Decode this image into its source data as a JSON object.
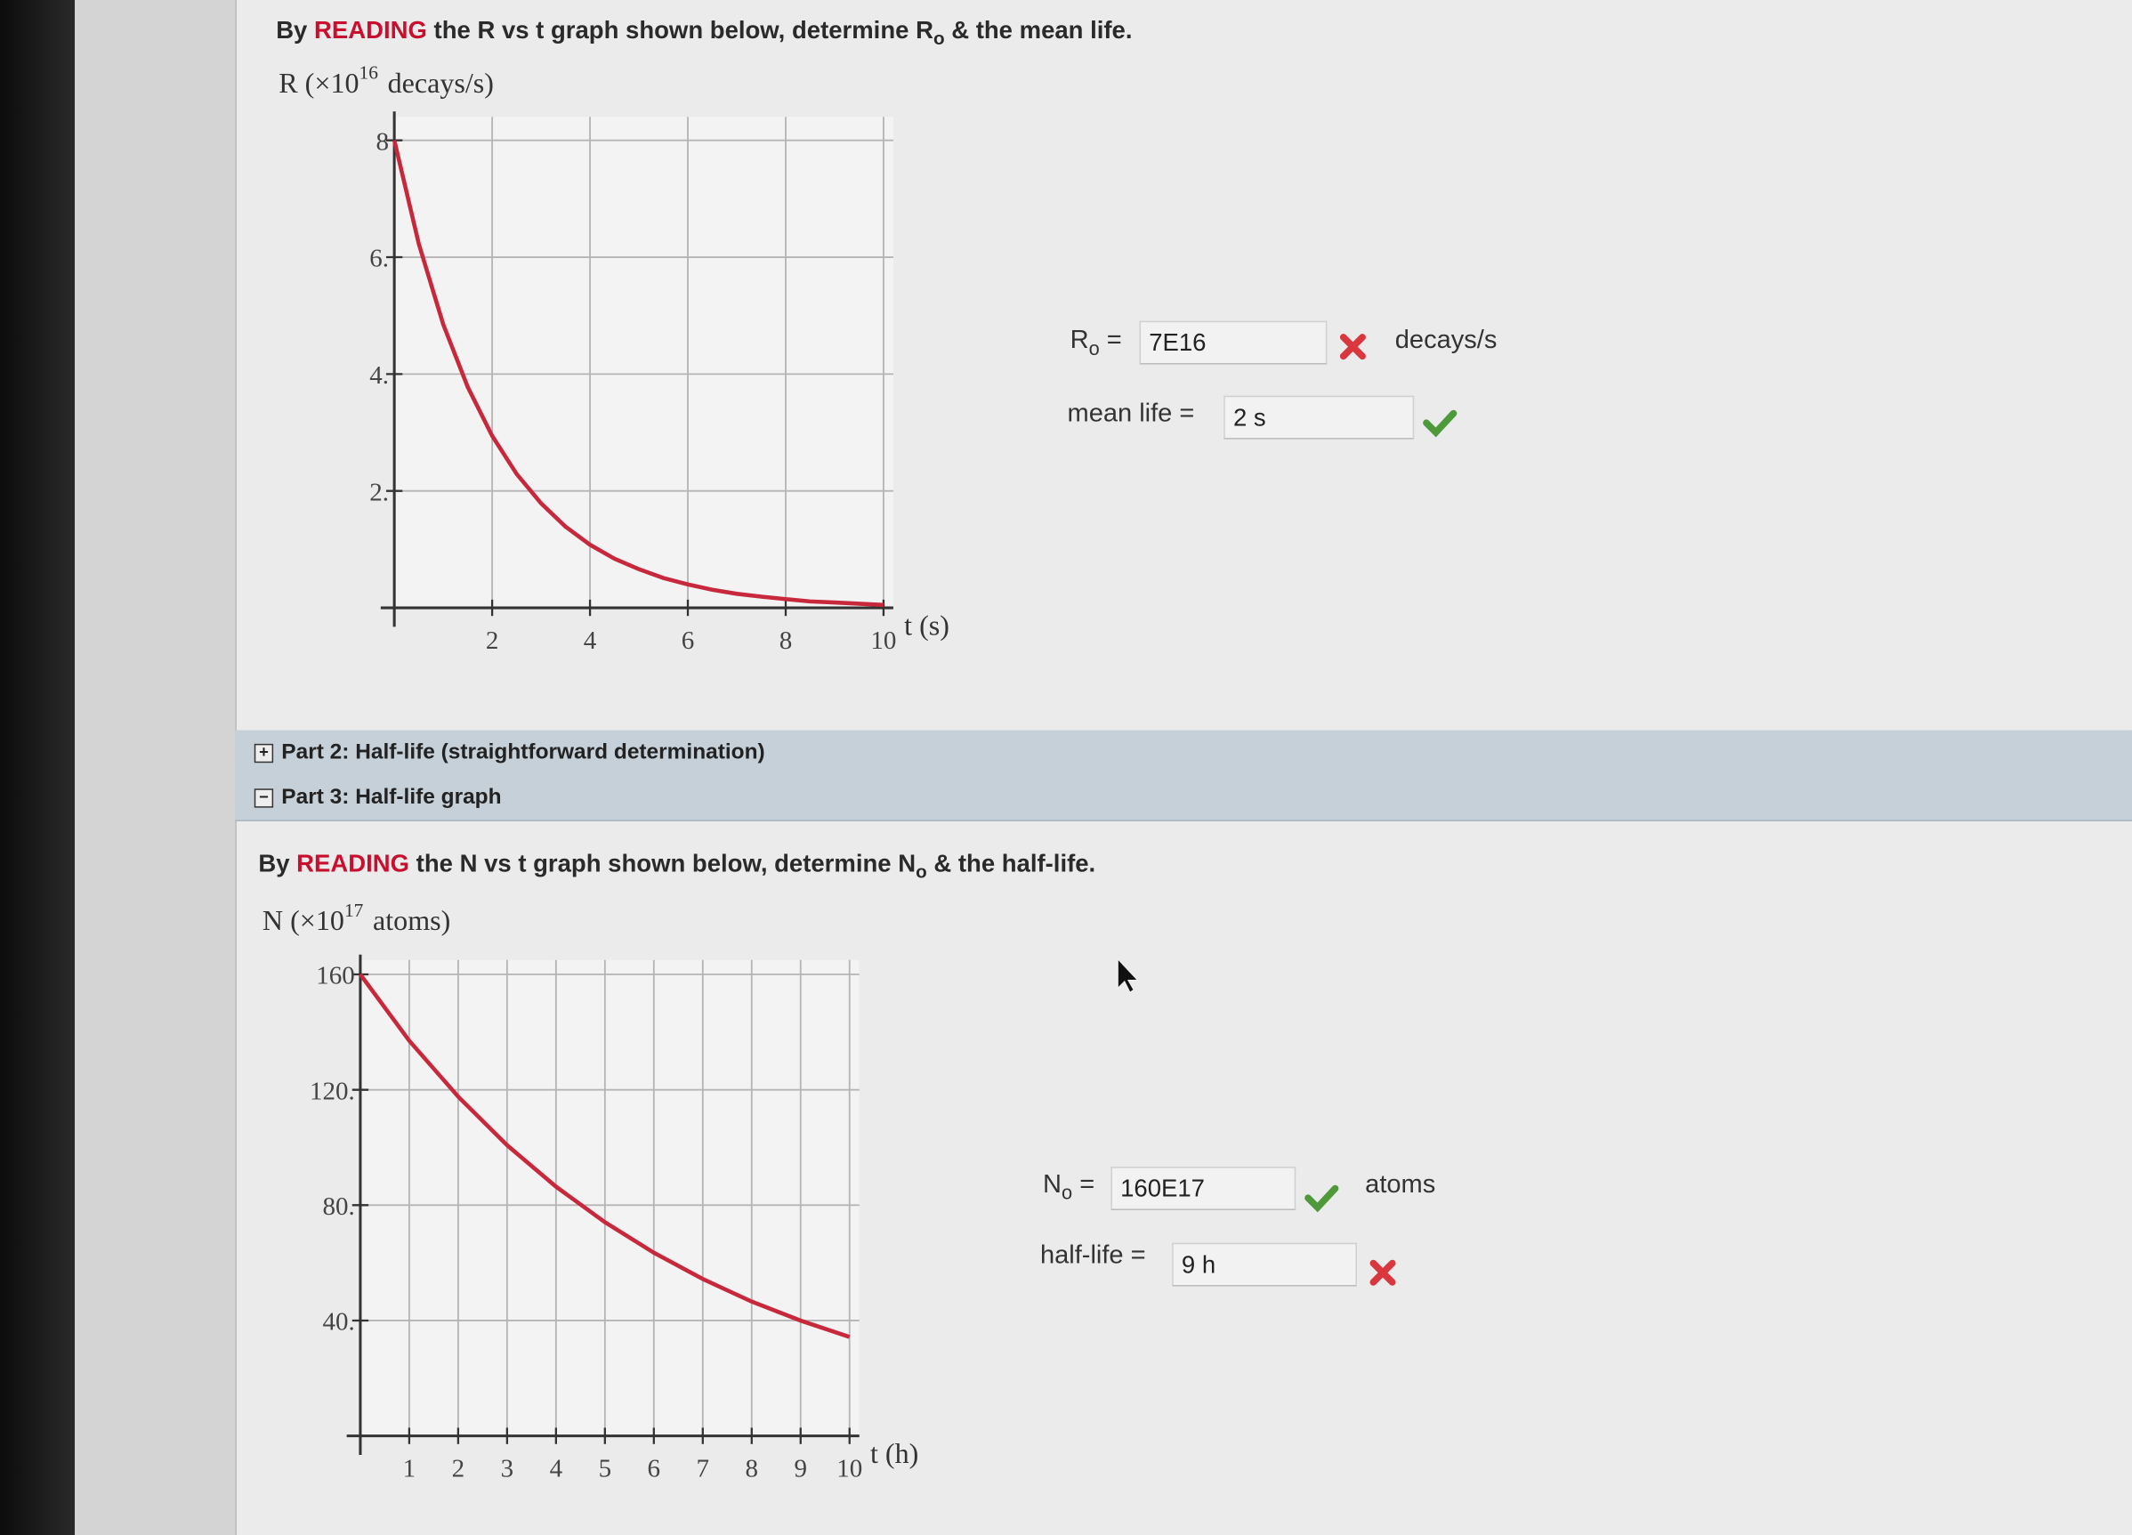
{
  "part1": {
    "question": {
      "pre": "By",
      "highlight": "READING",
      "mid": "the R vs t graph shown below, determine R",
      "sub": "o",
      "post": "& the mean life."
    },
    "answers": [
      {
        "label": "R",
        "sub": "o",
        "eq": "=",
        "value": "7E16",
        "status": "incorrect",
        "unit": "decays/s"
      },
      {
        "label": "mean life",
        "eq": "=",
        "value": "2 s",
        "status": "correct"
      }
    ]
  },
  "sections": [
    {
      "title": "Part 2: Half-life (straightforward determination)",
      "expanded": false
    },
    {
      "title": "Part 3: Half-life graph",
      "expanded": true
    }
  ],
  "part3": {
    "question": {
      "pre": "By",
      "highlight": "READING",
      "mid": "the N vs t graph shown below, determine N",
      "sub": "o",
      "post": "& the half-life."
    },
    "answers": [
      {
        "label": "N",
        "sub": "o",
        "eq": "=",
        "value": "160E17",
        "status": "correct",
        "unit": "atoms"
      },
      {
        "label": "half-life",
        "eq": "=",
        "value": "9 h",
        "status": "incorrect"
      }
    ]
  },
  "chart_data": [
    {
      "type": "line",
      "y_label": "R (×10",
      "y_label_exp": "16",
      "y_label_unit": "decays/s)",
      "x_label": "t (s)",
      "x": [
        0,
        0.5,
        1,
        1.5,
        2,
        2.5,
        3,
        3.5,
        4,
        4.5,
        5,
        5.5,
        6,
        6.5,
        7,
        7.5,
        8,
        8.5,
        9,
        9.5,
        10
      ],
      "values": [
        8,
        6.23,
        4.85,
        3.78,
        2.94,
        2.29,
        1.79,
        1.39,
        1.08,
        0.84,
        0.66,
        0.51,
        0.4,
        0.31,
        0.24,
        0.19,
        0.15,
        0.11,
        0.09,
        0.07,
        0.05
      ],
      "color": "#c8283c",
      "xlim": [
        0,
        10.2
      ],
      "ylim": [
        0,
        8.4
      ],
      "xticks": [
        2,
        4,
        6,
        8,
        10
      ],
      "yticks": [
        {
          "value": 2,
          "label": "2."
        },
        {
          "value": 4,
          "label": "4."
        },
        {
          "value": 6,
          "label": "6."
        },
        8
      ],
      "grid": true
    },
    {
      "type": "line",
      "y_label": "N (×10",
      "y_label_exp": "17",
      "y_label_unit": "atoms)",
      "x_label": "t (h)",
      "x": [
        0,
        1,
        2,
        3,
        4,
        5,
        6,
        7,
        8,
        9,
        10
      ],
      "values": [
        160,
        137,
        117.6,
        100.8,
        86.4,
        74.1,
        63.5,
        54.4,
        46.6,
        40,
        34.3
      ],
      "color": "#c8283c",
      "xlim": [
        0,
        10.2
      ],
      "ylim": [
        0,
        165
      ],
      "xticks": [
        1,
        2,
        3,
        4,
        5,
        6,
        7,
        8,
        9,
        10
      ],
      "yticks": [
        {
          "value": 40,
          "label": "40."
        },
        {
          "value": 80,
          "label": "80."
        },
        {
          "value": 120,
          "label": "120."
        },
        160
      ],
      "grid": true
    }
  ]
}
